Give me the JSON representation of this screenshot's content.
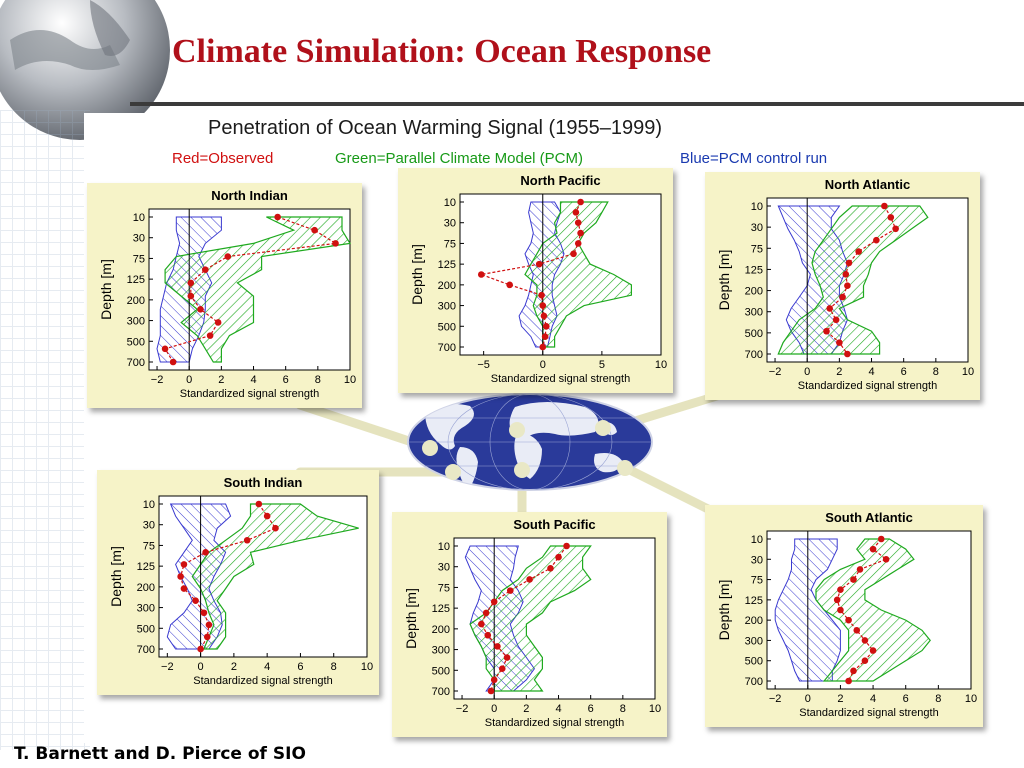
{
  "slide": {
    "title": "Climate Simulation: Ocean Response",
    "credit": "T. Barnett and D. Pierce of SIO"
  },
  "figure": {
    "title": "Penetration of Ocean Warming Signal (1955–1999)",
    "legend_red": "Red=Observed",
    "legend_green": "Green=Parallel Climate Model (PCM)",
    "legend_blue": "Blue=PCM control run"
  },
  "colors": {
    "title": "#b0101a",
    "observed": "#d01010",
    "pcm": "#1faa1f",
    "control": "#3a3ad0",
    "panel_bg": "#f6f3c8"
  },
  "chart_data": [
    {
      "type": "line",
      "title": "North Indian",
      "xlabel": "Standardized signal strength",
      "ylabel": "Depth [m]",
      "xlim": [
        -2.5,
        10
      ],
      "xticks": [
        -2,
        0,
        2,
        4,
        6,
        8,
        10
      ],
      "depth_labels": [
        "10",
        "30",
        "75",
        "125",
        "200",
        "300",
        "500",
        "700"
      ],
      "observed": [
        5.5,
        7.8,
        9.1,
        2.4,
        1.0,
        0.1,
        0.1,
        0.7,
        1.8,
        1.3,
        -1.5,
        -1.0
      ],
      "pcm_band": {
        "left": [
          4.8,
          6.5,
          4.0,
          -0.8,
          -1.5,
          -1.5,
          -0.5,
          0.5,
          -0.5,
          0.5,
          1.0,
          1.5
        ],
        "right": [
          9.5,
          9.5,
          10.0,
          4.5,
          4.5,
          3.0,
          4.0,
          4.0,
          4.0,
          2.5,
          2.0,
          2.0
        ]
      },
      "control_band": {
        "left": [
          -0.8,
          -0.8,
          -0.6,
          -0.8,
          -1.0,
          -1.4,
          -1.6,
          -1.8,
          -1.8,
          -1.8,
          -2.0,
          -1.8
        ],
        "right": [
          2.0,
          2.0,
          1.0,
          0.6,
          1.0,
          1.4,
          1.0,
          1.0,
          0.9,
          0.6,
          0.2,
          0.0
        ]
      }
    },
    {
      "type": "line",
      "title": "North Pacific",
      "xlabel": "Standardized signal strength",
      "ylabel": "Depth [m]",
      "xlim": [
        -7,
        10
      ],
      "xticks": [
        -5,
        0,
        5,
        10
      ],
      "depth_labels": [
        "10",
        "30",
        "75",
        "125",
        "200",
        "300",
        "500",
        "700"
      ],
      "observed": [
        3.2,
        2.8,
        3.0,
        3.2,
        3.0,
        2.6,
        -0.3,
        -5.2,
        -2.8,
        -0.1,
        0.0,
        0.1,
        0.3,
        0.2,
        0.0
      ],
      "pcm_band": {
        "left": [
          1.5,
          1.5,
          1.0,
          1.2,
          0.0,
          -0.5,
          -1.0,
          -1.5,
          -0.5,
          -0.5,
          -0.8,
          -0.5,
          0.0,
          0.0,
          0.0
        ],
        "right": [
          5.5,
          5.0,
          4.5,
          3.5,
          3.0,
          3.5,
          4.0,
          6.0,
          7.5,
          7.5,
          3.5,
          2.0,
          1.5,
          1.0,
          1.0
        ]
      },
      "control_band": {
        "left": [
          -1.0,
          -1.2,
          -1.0,
          -0.8,
          -1.0,
          -1.5,
          -1.2,
          -0.8,
          -1.0,
          -1.2,
          -1.5,
          -2.0,
          -1.8,
          -1.0,
          -0.6
        ],
        "right": [
          1.0,
          1.5,
          1.2,
          1.0,
          1.5,
          1.8,
          1.5,
          1.0,
          0.8,
          0.8,
          1.0,
          1.2,
          0.8,
          0.6,
          0.4
        ]
      }
    },
    {
      "type": "line",
      "title": "North Atlantic",
      "xlabel": "Standardized signal strength",
      "ylabel": "Depth [m]",
      "xlim": [
        -2.5,
        10
      ],
      "xticks": [
        -2,
        0,
        2,
        4,
        6,
        8,
        10
      ],
      "depth_labels": [
        "10",
        "30",
        "75",
        "125",
        "200",
        "300",
        "500",
        "700"
      ],
      "observed": [
        4.8,
        5.2,
        5.5,
        4.3,
        3.2,
        2.6,
        2.4,
        2.5,
        2.2,
        1.4,
        1.8,
        1.2,
        2.0,
        2.5
      ],
      "pcm_band": {
        "left": [
          2.8,
          2.0,
          1.5,
          1.0,
          0.5,
          0.3,
          0.5,
          0.8,
          1.0,
          0.5,
          -0.5,
          -1.0,
          -1.5,
          -1.8
        ],
        "right": [
          7.0,
          7.5,
          6.5,
          5.5,
          4.5,
          4.0,
          3.8,
          3.5,
          3.5,
          2.0,
          2.5,
          4.0,
          4.5,
          4.5
        ]
      },
      "control_band": {
        "left": [
          -1.8,
          -1.5,
          -1.2,
          -0.8,
          -0.5,
          -0.3,
          0.2,
          0.0,
          -0.5,
          -1.0,
          -1.3,
          -1.0,
          -0.5,
          -0.2
        ],
        "right": [
          2.0,
          1.5,
          1.5,
          2.0,
          2.2,
          2.5,
          2.3,
          2.0,
          2.0,
          2.3,
          2.5,
          2.2,
          2.0,
          1.5
        ]
      }
    },
    {
      "type": "line",
      "title": "South Indian",
      "xlabel": "Standardized signal strength",
      "ylabel": "Depth [m]",
      "xlim": [
        -2.5,
        10
      ],
      "xticks": [
        -2,
        0,
        2,
        4,
        6,
        8,
        10
      ],
      "depth_labels": [
        "10",
        "30",
        "75",
        "125",
        "200",
        "300",
        "500",
        "700"
      ],
      "observed": [
        3.5,
        4.0,
        4.5,
        2.8,
        0.3,
        -1.0,
        -1.2,
        -1.0,
        -0.3,
        0.2,
        0.5,
        0.4,
        0.0
      ],
      "pcm_band": {
        "left": [
          3.0,
          3.0,
          2.5,
          1.5,
          0.5,
          0.0,
          -0.5,
          0.0,
          0.3,
          0.5,
          0.8,
          0.5,
          0.2
        ],
        "right": [
          6.0,
          7.0,
          9.5,
          6.0,
          3.0,
          3.2,
          2.0,
          1.5,
          1.0,
          1.5,
          1.5,
          1.5,
          1.0
        ]
      },
      "control_band": {
        "left": [
          -1.8,
          -1.5,
          -1.0,
          -0.5,
          -1.0,
          -1.5,
          -1.2,
          -0.8,
          -0.5,
          -1.0,
          -1.8,
          -2.0,
          -1.5
        ],
        "right": [
          1.5,
          1.8,
          1.0,
          0.8,
          1.5,
          1.2,
          0.8,
          0.5,
          0.8,
          1.2,
          1.3,
          1.0,
          0.5
        ]
      }
    },
    {
      "type": "line",
      "title": "South Pacific",
      "xlabel": "Standardized signal strength",
      "ylabel": "Depth [m]",
      "xlim": [
        -2.5,
        10
      ],
      "xticks": [
        -2,
        0,
        2,
        4,
        6,
        8,
        10
      ],
      "depth_labels": [
        "10",
        "30",
        "75",
        "125",
        "200",
        "300",
        "500",
        "700"
      ],
      "observed": [
        4.5,
        4.0,
        3.5,
        2.2,
        1.0,
        0.0,
        -0.5,
        -0.8,
        -0.4,
        0.2,
        0.8,
        0.5,
        0.0,
        -0.2
      ],
      "pcm_band": {
        "left": [
          3.5,
          3.0,
          2.0,
          1.5,
          0.5,
          0.0,
          -0.5,
          -1.5,
          -1.2,
          -0.8,
          -0.5,
          -0.5,
          0.0,
          0.0
        ],
        "right": [
          6.0,
          5.5,
          5.5,
          6.0,
          5.0,
          3.5,
          3.0,
          2.0,
          2.0,
          2.5,
          3.0,
          3.0,
          2.5,
          3.0
        ]
      },
      "control_band": {
        "left": [
          -1.5,
          -1.8,
          -1.5,
          -1.2,
          -0.8,
          -1.0,
          -1.3,
          -1.5,
          -1.2,
          -0.8,
          -0.5,
          0.0,
          0.0,
          -0.5
        ],
        "right": [
          1.5,
          1.3,
          1.2,
          1.0,
          1.5,
          1.8,
          1.5,
          1.0,
          1.2,
          1.5,
          2.0,
          2.5,
          2.0,
          1.2
        ]
      }
    },
    {
      "type": "line",
      "title": "South Atlantic",
      "xlabel": "Standardized signal strength",
      "ylabel": "Depth [m]",
      "xlim": [
        -2.5,
        10
      ],
      "xticks": [
        -2,
        0,
        2,
        4,
        6,
        8,
        10
      ],
      "depth_labels": [
        "10",
        "30",
        "75",
        "125",
        "200",
        "300",
        "500",
        "700"
      ],
      "observed": [
        4.5,
        4.0,
        4.8,
        3.2,
        2.8,
        2.0,
        1.8,
        2.0,
        2.5,
        3.0,
        3.5,
        4.0,
        3.5,
        2.8,
        2.5
      ],
      "pcm_band": {
        "left": [
          3.5,
          3.0,
          3.5,
          2.0,
          1.0,
          0.5,
          0.5,
          1.0,
          2.0,
          2.5,
          2.5,
          2.5,
          2.0,
          1.5,
          1.0
        ],
        "right": [
          5.0,
          6.0,
          6.5,
          5.5,
          4.5,
          3.5,
          3.5,
          4.5,
          6.0,
          7.0,
          7.5,
          7.0,
          6.0,
          5.0,
          4.0
        ]
      },
      "control_band": {
        "left": [
          -0.8,
          -0.8,
          -1.0,
          -1.0,
          -1.2,
          -1.5,
          -1.8,
          -2.0,
          -2.0,
          -1.8,
          -1.5,
          -1.2,
          -1.0,
          -0.8,
          -0.5
        ],
        "right": [
          1.8,
          1.8,
          1.5,
          1.2,
          0.5,
          0.2,
          0.5,
          1.0,
          1.5,
          2.0,
          2.0,
          2.0,
          1.8,
          1.5,
          1.5
        ]
      }
    }
  ]
}
